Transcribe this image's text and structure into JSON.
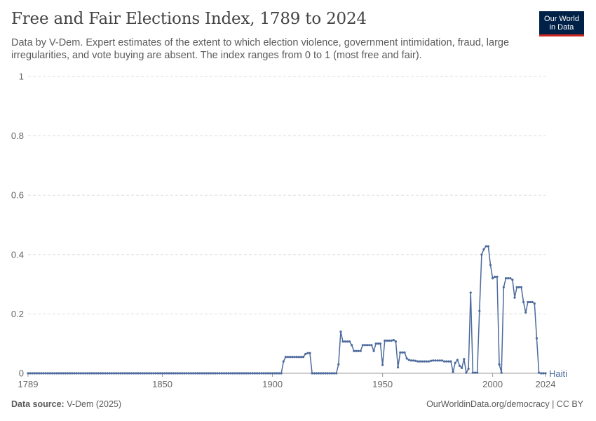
{
  "header": {
    "title": "Free and Fair Elections Index, 1789 to 2024",
    "subtitle": "Data by V-Dem. Expert estimates of the extent to which election violence, government intimidation, fraud, large irregularities, and vote buying are absent. The index ranges from 0 to 1 (most free and fair)."
  },
  "logo": {
    "line1": "Our World",
    "line2": "in Data"
  },
  "footer": {
    "source_label": "Data source:",
    "source_value": "V-Dem (2025)",
    "link": "OurWorldinData.org/democracy | CC BY"
  },
  "colors": {
    "series": "#4c6a9c",
    "grid": "#dddddd",
    "axis": "#999999",
    "text": "#666666"
  },
  "chart_data": {
    "type": "line",
    "title": "Free and Fair Elections Index, 1789 to 2024",
    "xlabel": "",
    "ylabel": "",
    "xlim": [
      1789,
      2024
    ],
    "ylim": [
      0,
      1
    ],
    "x_ticks": [
      "1789",
      "1850",
      "1900",
      "1950",
      "2000",
      "2024"
    ],
    "y_ticks": [
      "0",
      "0.2",
      "0.4",
      "0.6",
      "0.8",
      "1"
    ],
    "grid": "horizontal dashed",
    "series": [
      {
        "name": "Haiti",
        "color": "#4c6a9c",
        "points": [
          [
            1789,
            0
          ],
          [
            1900,
            0
          ],
          [
            1904,
            0
          ],
          [
            1905,
            0.04
          ],
          [
            1906,
            0.055
          ],
          [
            1907,
            0.055
          ],
          [
            1908,
            0.055
          ],
          [
            1909,
            0.055
          ],
          [
            1910,
            0.055
          ],
          [
            1911,
            0.055
          ],
          [
            1912,
            0.055
          ],
          [
            1913,
            0.055
          ],
          [
            1914,
            0.055
          ],
          [
            1915,
            0.065
          ],
          [
            1916,
            0.068
          ],
          [
            1917,
            0.068
          ],
          [
            1918,
            0
          ],
          [
            1919,
            0
          ],
          [
            1925,
            0
          ],
          [
            1929,
            0
          ],
          [
            1930,
            0.03
          ],
          [
            1931,
            0.14
          ],
          [
            1932,
            0.107
          ],
          [
            1933,
            0.107
          ],
          [
            1934,
            0.107
          ],
          [
            1935,
            0.107
          ],
          [
            1936,
            0.095
          ],
          [
            1937,
            0.075
          ],
          [
            1938,
            0.075
          ],
          [
            1939,
            0.075
          ],
          [
            1940,
            0.075
          ],
          [
            1941,
            0.095
          ],
          [
            1942,
            0.095
          ],
          [
            1943,
            0.095
          ],
          [
            1944,
            0.095
          ],
          [
            1945,
            0.095
          ],
          [
            1946,
            0.075
          ],
          [
            1947,
            0.1
          ],
          [
            1948,
            0.1
          ],
          [
            1949,
            0.1
          ],
          [
            1950,
            0.028
          ],
          [
            1951,
            0.11
          ],
          [
            1952,
            0.11
          ],
          [
            1953,
            0.11
          ],
          [
            1954,
            0.11
          ],
          [
            1955,
            0.112
          ],
          [
            1956,
            0.107
          ],
          [
            1957,
            0.02
          ],
          [
            1958,
            0.07
          ],
          [
            1959,
            0.07
          ],
          [
            1960,
            0.07
          ],
          [
            1961,
            0.05
          ],
          [
            1962,
            0.045
          ],
          [
            1963,
            0.043
          ],
          [
            1964,
            0.043
          ],
          [
            1965,
            0.042
          ],
          [
            1966,
            0.04
          ],
          [
            1967,
            0.04
          ],
          [
            1968,
            0.04
          ],
          [
            1969,
            0.04
          ],
          [
            1970,
            0.04
          ],
          [
            1971,
            0.04
          ],
          [
            1972,
            0.042
          ],
          [
            1973,
            0.043
          ],
          [
            1974,
            0.043
          ],
          [
            1975,
            0.043
          ],
          [
            1976,
            0.043
          ],
          [
            1977,
            0.043
          ],
          [
            1978,
            0.04
          ],
          [
            1979,
            0.04
          ],
          [
            1980,
            0.04
          ],
          [
            1981,
            0.04
          ],
          [
            1982,
            0.005
          ],
          [
            1983,
            0.035
          ],
          [
            1984,
            0.045
          ],
          [
            1985,
            0.025
          ],
          [
            1986,
            0.018
          ],
          [
            1987,
            0.048
          ],
          [
            1988,
            0.002
          ],
          [
            1989,
            0.015
          ],
          [
            1990,
            0.272
          ],
          [
            1991,
            0.002
          ],
          [
            1992,
            0.002
          ],
          [
            1993,
            0.002
          ],
          [
            1994,
            0.21
          ],
          [
            1995,
            0.4
          ],
          [
            1996,
            0.418
          ],
          [
            1997,
            0.428
          ],
          [
            1998,
            0.428
          ],
          [
            1999,
            0.365
          ],
          [
            2000,
            0.32
          ],
          [
            2001,
            0.325
          ],
          [
            2002,
            0.325
          ],
          [
            2003,
            0.03
          ],
          [
            2004,
            0.002
          ],
          [
            2005,
            0.29
          ],
          [
            2006,
            0.32
          ],
          [
            2007,
            0.32
          ],
          [
            2008,
            0.32
          ],
          [
            2009,
            0.315
          ],
          [
            2010,
            0.255
          ],
          [
            2011,
            0.29
          ],
          [
            2012,
            0.29
          ],
          [
            2013,
            0.29
          ],
          [
            2014,
            0.24
          ],
          [
            2015,
            0.205
          ],
          [
            2016,
            0.24
          ],
          [
            2017,
            0.24
          ],
          [
            2018,
            0.24
          ],
          [
            2019,
            0.235
          ],
          [
            2020,
            0.118
          ],
          [
            2021,
            0.002
          ],
          [
            2022,
            0
          ],
          [
            2023,
            0
          ],
          [
            2024,
            0
          ]
        ]
      }
    ]
  }
}
